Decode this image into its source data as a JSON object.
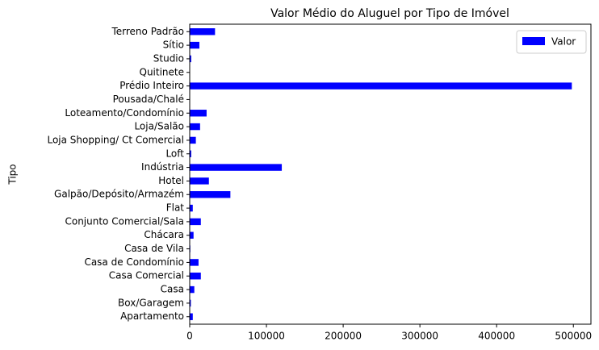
{
  "chart_data": {
    "type": "barh",
    "title": "Valor Médio do Aluguel por Tipo de Imóvel",
    "y_label": "Tipo",
    "categories": [
      "Apartamento",
      "Box/Garagem",
      "Casa",
      "Casa Comercial",
      "Casa de Condomínio",
      "Casa de Vila",
      "Chácara",
      "Conjunto Comercial/Sala",
      "Flat",
      "Galpão/Depósito/Armazém",
      "Hotel",
      "Indústria",
      "Loft",
      "Loja Shopping/ Ct Comercial",
      "Loja/Salão",
      "Loteamento/Condomínio",
      "Pousada/Chalé",
      "Prédio Inteiro",
      "Quitinete",
      "Studio",
      "Sítio",
      "Terreno Padrão"
    ],
    "series": [
      {
        "name": "Valor",
        "color": "#0000ff",
        "values": [
          4000,
          1500,
          6000,
          14500,
          11500,
          800,
          5000,
          14500,
          4000,
          53000,
          25000,
          120000,
          2000,
          8000,
          13500,
          22000,
          300,
          498000,
          500,
          2000,
          12600,
          33000
        ]
      }
    ],
    "xlim": [
      0,
      522900
    ],
    "xticks": [
      0,
      100000,
      200000,
      300000,
      400000,
      500000
    ],
    "grid": false,
    "legend": "upper right"
  }
}
